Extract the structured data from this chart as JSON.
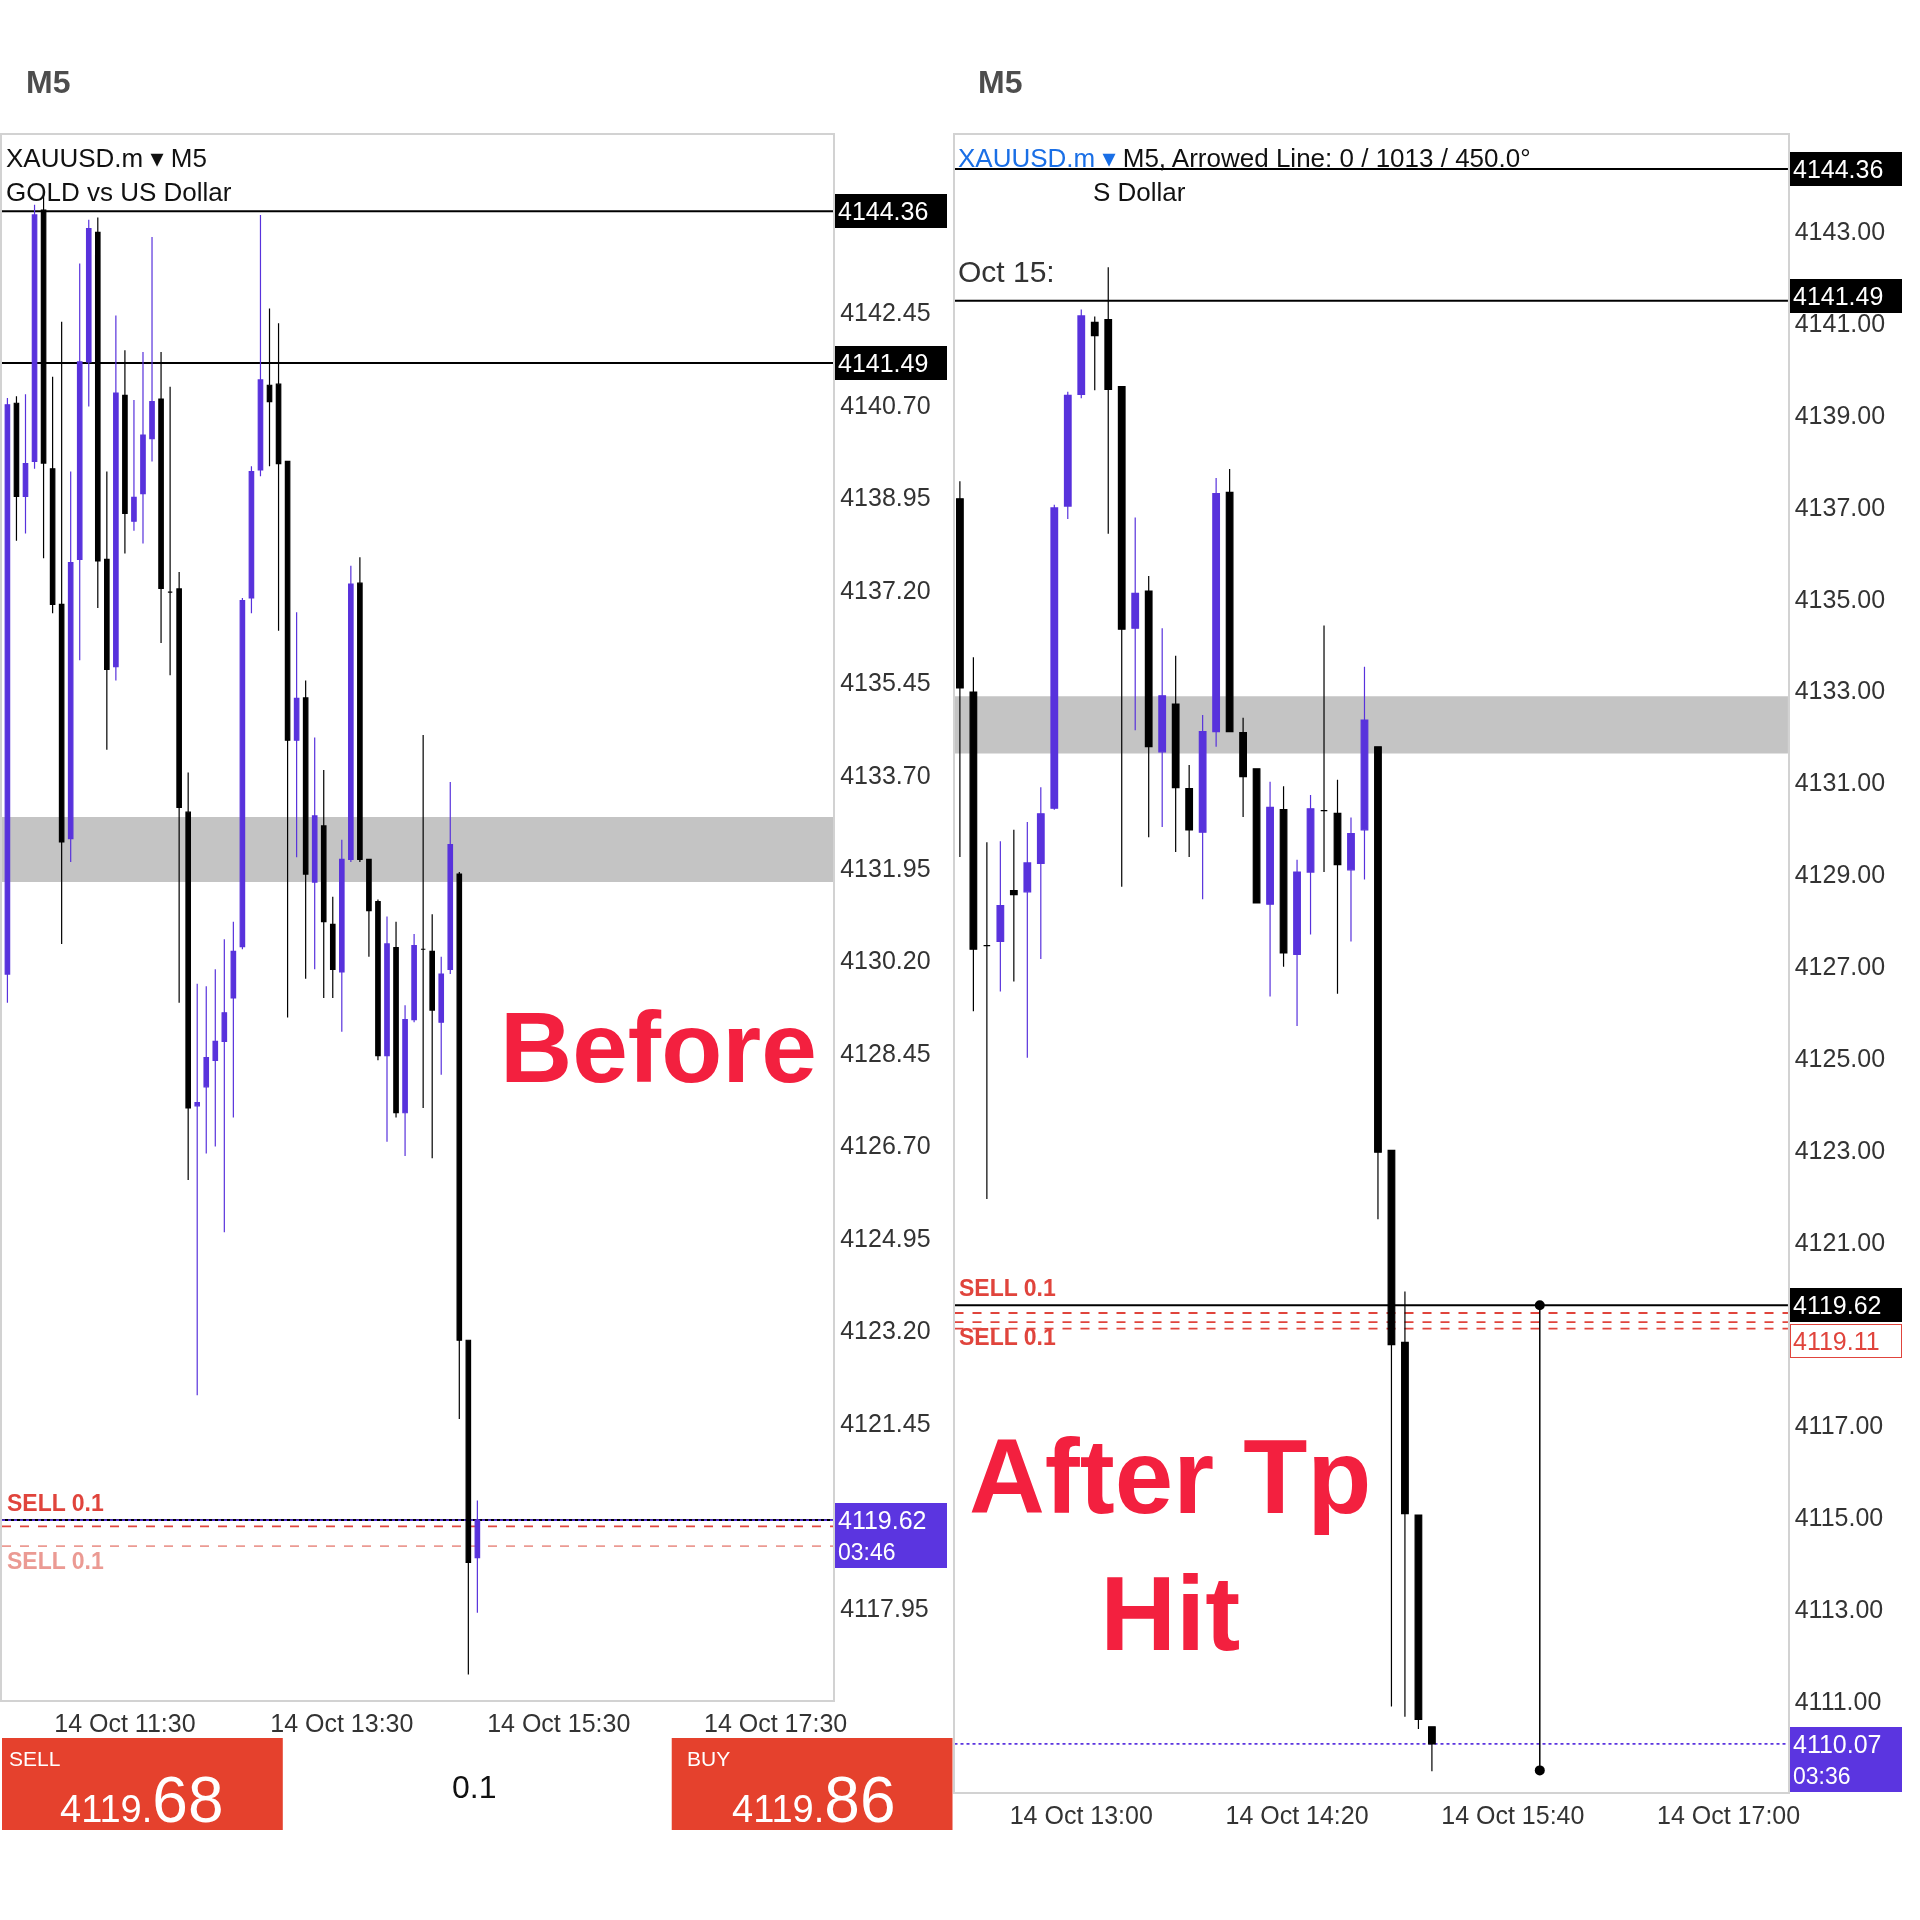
{
  "chart_data": [
    {
      "type": "candlestick",
      "title": "XAUUSD.m ▾ M5",
      "subtitle": "GOLD vs US Dollar",
      "x": [
        "--10-14T10:25",
        "--10-14T10:30",
        "--10-14T10:35",
        "--10-14T10:40",
        "--10-14T10:45",
        "--10-14T10:50",
        "--10-14T10:55",
        "--10-14T11:00",
        "--10-14T11:05",
        "--10-14T11:10",
        "--10-14T11:15",
        "--10-14T11:20",
        "--10-14T11:25",
        "--10-14T11:30",
        "--10-14T11:35",
        "--10-14T11:40",
        "--10-14T11:45",
        "--10-14T11:50",
        "--10-14T11:55",
        "--10-14T12:00",
        "--10-14T12:05",
        "--10-14T12:10",
        "--10-14T12:15",
        "--10-14T12:20",
        "--10-14T12:25",
        "--10-14T12:30",
        "--10-14T12:35",
        "--10-14T12:40",
        "--10-14T12:45",
        "--10-14T12:50",
        "--10-14T12:55",
        "--10-14T13:00",
        "--10-14T13:05",
        "--10-14T13:10",
        "--10-14T13:15",
        "--10-14T13:20",
        "--10-14T13:25",
        "--10-14T13:30",
        "--10-14T13:35",
        "--10-14T13:40",
        "--10-14T13:45",
        "--10-14T13:50",
        "--10-14T13:55",
        "--10-14T14:00",
        "--10-14T14:05",
        "--10-14T14:10",
        "--10-14T14:15",
        "--10-14T14:20",
        "--10-14T14:25",
        "--10-14T14:30",
        "--10-14T14:35",
        "--10-14T14:40",
        "--10-14T14:45"
      ],
      "ohlc": [
        [
          4129.94,
          4140.83,
          4129.4,
          4140.7
        ],
        [
          4140.73,
          4140.86,
          4138.13,
          4138.97
        ],
        [
          4138.97,
          4140.9,
          4138.27,
          4139.59
        ],
        [
          4139.63,
          4144.48,
          4139.49,
          4144.29
        ],
        [
          4144.38,
          4144.67,
          4137.8,
          4139.6
        ],
        [
          4139.49,
          4141.23,
          4136.76,
          4136.93
        ],
        [
          4136.93,
          4142.27,
          4130.51,
          4132.44
        ],
        [
          4132.5,
          4139.44,
          4132.06,
          4137.72
        ],
        [
          4137.78,
          4143.37,
          4135.87,
          4141.51
        ],
        [
          4141.51,
          4144.2,
          4140.67,
          4144.03
        ],
        [
          4143.96,
          4144.24,
          4136.86,
          4137.75
        ],
        [
          4137.78,
          4139.44,
          4134.18,
          4135.7
        ],
        [
          4135.75,
          4142.39,
          4135.49,
          4140.92
        ],
        [
          4140.88,
          4141.73,
          4137.89,
          4138.65
        ],
        [
          4138.5,
          4140.79,
          4138.32,
          4138.95
        ],
        [
          4139.02,
          4141.7,
          4138.08,
          4140.13
        ],
        [
          4140.06,
          4143.87,
          4139.63,
          4140.76
        ],
        [
          4140.81,
          4141.7,
          4136.2,
          4137.23
        ],
        [
          4137.16,
          4141.04,
          4135.59,
          4137.16
        ],
        [
          4137.22,
          4137.54,
          4129.4,
          4133.09
        ],
        [
          4133.0,
          4133.75,
          4126.05,
          4127.41
        ],
        [
          4127.45,
          4129.76,
          4121.98,
          4127.51
        ],
        [
          4127.81,
          4129.71,
          4126.55,
          4128.36
        ],
        [
          4128.31,
          4130.03,
          4126.68,
          4128.67
        ],
        [
          4128.67,
          4130.6,
          4125.06,
          4129.21
        ],
        [
          4129.49,
          4130.93,
          4127.23,
          4130.37
        ],
        [
          4130.46,
          4137.05,
          4130.41,
          4137.0
        ],
        [
          4137.05,
          4139.54,
          4136.76,
          4139.44
        ],
        [
          4139.47,
          4144.29,
          4139.35,
          4141.17
        ],
        [
          4141.07,
          4142.52,
          4139.54,
          4140.76
        ],
        [
          4141.09,
          4142.24,
          4136.43,
          4139.59
        ],
        [
          4139.63,
          4139.63,
          4129.12,
          4134.36
        ],
        [
          4134.36,
          4136.78,
          4132.15,
          4135.15
        ],
        [
          4135.16,
          4135.49,
          4129.85,
          4131.83
        ],
        [
          4131.68,
          4134.41,
          4130.03,
          4132.93
        ],
        [
          4132.74,
          4133.8,
          4129.49,
          4130.93
        ],
        [
          4130.88,
          4131.4,
          4129.49,
          4130.03
        ],
        [
          4129.98,
          4132.48,
          4128.85,
          4132.11
        ],
        [
          4132.11,
          4137.66,
          4132.06,
          4137.31
        ],
        [
          4137.33,
          4137.82,
          4132.06,
          4132.11
        ],
        [
          4132.11,
          4132.11,
          4130.27,
          4131.14
        ],
        [
          4131.31,
          4131.35,
          4128.31,
          4128.4
        ],
        [
          4128.4,
          4131.03,
          4126.77,
          4130.51
        ],
        [
          4130.44,
          4130.93,
          4127.23,
          4127.32
        ],
        [
          4127.32,
          4129.35,
          4126.5,
          4129.08
        ],
        [
          4129.08,
          4130.7,
          4129.03,
          4130.48
        ],
        [
          4130.41,
          4134.46,
          4127.41,
          4130.41
        ],
        [
          4130.37,
          4131.07,
          4126.46,
          4129.26
        ],
        [
          4129.03,
          4130.27,
          4128.04,
          4129.94
        ],
        [
          4130.03,
          4133.57,
          4129.94,
          4132.39
        ],
        [
          4131.83,
          4131.87,
          4121.53,
          4123.02
        ],
        [
          4123.02,
          4123.02,
          4116.7,
          4118.82
        ],
        [
          4118.91,
          4119.99,
          4117.87,
          4119.62
        ]
      ],
      "colors": [
        "#5832dc",
        "#000000",
        "#5832dc",
        "#5832dc",
        "#000000",
        "#000000",
        "#000000",
        "#5832dc",
        "#5832dc",
        "#5832dc",
        "#000000",
        "#000000",
        "#5832dc",
        "#000000",
        "#5832dc",
        "#5832dc",
        "#5832dc",
        "#000000",
        "#000000",
        "#000000",
        "#000000",
        "#5832dc",
        "#5832dc",
        "#5832dc",
        "#5832dc",
        "#5832dc",
        "#5832dc",
        "#5832dc",
        "#5832dc",
        "#000000",
        "#000000",
        "#000000",
        "#5832dc",
        "#000000",
        "#5832dc",
        "#000000",
        "#000000",
        "#5832dc",
        "#5832dc",
        "#000000",
        "#000000",
        "#000000",
        "#5832dc",
        "#000000",
        "#5832dc",
        "#5832dc",
        "#000000",
        "#000000",
        "#5832dc",
        "#5832dc",
        "#000000",
        "#000000",
        "#5832dc"
      ],
      "xlim": [
        "--10-14T10:22",
        "--10-14T18:02"
      ],
      "xticks": [
        {
          "value": "--10-14T11:30",
          "label": "14 Oct 11:30"
        },
        {
          "value": "--10-14T13:30",
          "label": "14 Oct 13:30"
        },
        {
          "value": "--10-14T15:30",
          "label": "14 Oct 15:30"
        },
        {
          "value": "--10-14T17:30",
          "label": "14 Oct 17:30"
        }
      ],
      "ylim": [
        4116.22,
        4145.8
      ],
      "yticks": [
        {
          "value": 4142.45,
          "label": "4142.45"
        },
        {
          "value": 4140.7,
          "label": "4140.70"
        },
        {
          "value": 4138.95,
          "label": "4138.95"
        },
        {
          "value": 4137.2,
          "label": "4137.20"
        },
        {
          "value": 4135.45,
          "label": "4135.45"
        },
        {
          "value": 4133.7,
          "label": "4133.70"
        },
        {
          "value": 4131.95,
          "label": "4131.95"
        },
        {
          "value": 4130.2,
          "label": "4130.20"
        },
        {
          "value": 4128.45,
          "label": "4128.45"
        },
        {
          "value": 4126.7,
          "label": "4126.70"
        },
        {
          "value": 4124.95,
          "label": "4124.95"
        },
        {
          "value": 4123.2,
          "label": "4123.20"
        },
        {
          "value": 4121.45,
          "label": "4121.45"
        },
        {
          "value": 4117.95,
          "label": "4117.95"
        }
      ],
      "ref_lines": [
        {
          "axis": "y",
          "value": 4144.36,
          "label": "4144.36",
          "color": "#000000"
        },
        {
          "axis": "y",
          "value": 4141.49,
          "label": "4141.49",
          "color": "#000000"
        },
        {
          "axis": "y",
          "value": 4119.62,
          "color": "#000000"
        },
        {
          "axis": "y",
          "value": 4119.62,
          "label": "4119.62",
          "color": "#5b35e0",
          "line_style": "dotted"
        },
        {
          "axis": "y",
          "value": 4119.5,
          "label": "SELL 0.1",
          "color": "#e0443c",
          "line_style": "dashed"
        },
        {
          "axis": "y",
          "value": 4119.13,
          "label": "SELL 0.1",
          "color": "#eb9a93",
          "line_style": "dashed"
        }
      ],
      "bands": [
        {
          "axis": "y",
          "from": 4131.68,
          "to": 4132.91,
          "color": "#c4c4c4"
        }
      ],
      "annotations": [
        "M5",
        "Before",
        "03:46",
        "SELL",
        "4119.68",
        "0.1",
        "BUY",
        "4119.86"
      ]
    },
    {
      "type": "candlestick",
      "title": "XAUUSD.m ▾ M5, Arrowed Line: 0 / 1013 / 450.0°",
      "subtitle": "S Dollar",
      "x": [
        "--10-14T12:15",
        "--10-14T12:20",
        "--10-14T12:25",
        "--10-14T12:30",
        "--10-14T12:35",
        "--10-14T12:40",
        "--10-14T12:45",
        "--10-14T12:50",
        "--10-14T12:55",
        "--10-14T13:00",
        "--10-14T13:05",
        "--10-14T13:10",
        "--10-14T13:15",
        "--10-14T13:20",
        "--10-14T13:25",
        "--10-14T13:30",
        "--10-14T13:35",
        "--10-14T13:40",
        "--10-14T13:45",
        "--10-14T13:50",
        "--10-14T13:55",
        "--10-14T14:00",
        "--10-14T14:05",
        "--10-14T14:10",
        "--10-14T14:15",
        "--10-14T14:20",
        "--10-14T14:25",
        "--10-14T14:30",
        "--10-14T14:35",
        "--10-14T14:40",
        "--10-14T14:45",
        "--10-14T14:50",
        "--10-14T14:55",
        "--10-14T15:00",
        "--10-14T15:05",
        "--10-14T15:10"
      ],
      "ohlc": [
        [
          4137.18,
          4137.56,
          4129.38,
          4133.06
        ],
        [
          4132.97,
          4133.73,
          4126.02,
          4127.37
        ],
        [
          4127.45,
          4129.7,
          4121.93,
          4127.45
        ],
        [
          4127.54,
          4129.72,
          4126.45,
          4128.32
        ],
        [
          4128.65,
          4129.97,
          4126.67,
          4128.56
        ],
        [
          4128.62,
          4130.14,
          4125.01,
          4129.25
        ],
        [
          4129.24,
          4130.9,
          4127.16,
          4130.32
        ],
        [
          4130.44,
          4137.05,
          4130.41,
          4136.98
        ],
        [
          4137.02,
          4139.51,
          4136.74,
          4139.43
        ],
        [
          4139.45,
          4141.3,
          4139.37,
          4141.16
        ],
        [
          4141.02,
          4141.15,
          4139.54,
          4140.73
        ],
        [
          4141.08,
          4142.22,
          4136.42,
          4139.56
        ],
        [
          4139.62,
          4139.62,
          4128.73,
          4134.34
        ],
        [
          4134.36,
          4136.77,
          4132.14,
          4135.12
        ],
        [
          4135.17,
          4135.5,
          4129.81,
          4131.78
        ],
        [
          4131.67,
          4134.36,
          4130.03,
          4132.89
        ],
        [
          4132.71,
          4133.76,
          4129.49,
          4130.89
        ],
        [
          4130.87,
          4131.38,
          4129.38,
          4129.97
        ],
        [
          4129.92,
          4132.47,
          4128.46,
          4132.11
        ],
        [
          4132.11,
          4137.63,
          4131.78,
          4137.29
        ],
        [
          4137.32,
          4137.83,
          4132.11,
          4132.11
        ],
        [
          4132.09,
          4132.41,
          4130.25,
          4131.13
        ],
        [
          4131.3,
          4131.3,
          4128.38,
          4128.38
        ],
        [
          4128.35,
          4131.02,
          4126.34,
          4130.46
        ],
        [
          4130.41,
          4130.92,
          4126.99,
          4127.29
        ],
        [
          4127.26,
          4129.32,
          4125.7,
          4129.05
        ],
        [
          4129.05,
          4130.73,
          4127.69,
          4130.43
        ],
        [
          4130.39,
          4134.42,
          4129.05,
          4130.39
        ],
        [
          4130.33,
          4131.06,
          4126.4,
          4129.21
        ],
        [
          4129.1,
          4130.24,
          4127.54,
          4129.89
        ],
        [
          4129.97,
          4133.52,
          4128.89,
          4132.36
        ],
        [
          4131.78,
          4131.78,
          4121.49,
          4122.95
        ],
        [
          4122.99,
          4122.99,
          4110.88,
          4118.76
        ],
        [
          4118.81,
          4119.92,
          4110.66,
          4115.08
        ],
        [
          4115.05,
          4115.05,
          4110.39,
          4110.6
        ],
        [
          4110.44,
          4110.44,
          4109.47,
          4110.07
        ]
      ],
      "colors": [
        "#000000",
        "#000000",
        "#000000",
        "#5832dc",
        "#000000",
        "#5832dc",
        "#5832dc",
        "#5832dc",
        "#5832dc",
        "#5832dc",
        "#000000",
        "#000000",
        "#000000",
        "#5832dc",
        "#000000",
        "#5832dc",
        "#000000",
        "#000000",
        "#5832dc",
        "#5832dc",
        "#000000",
        "#000000",
        "#000000",
        "#5832dc",
        "#000000",
        "#5832dc",
        "#5832dc",
        "#000000",
        "#000000",
        "#5832dc",
        "#5832dc",
        "#000000",
        "#000000",
        "#000000",
        "#000000",
        "#000000"
      ],
      "series": [
        {
          "type": "line",
          "x": [
            "--10-14T15:50",
            "--10-14T15:50"
          ],
          "values": [
            4119.62,
            4109.49
          ],
          "color": "#000000"
        }
      ],
      "marker": "circle",
      "xlim": [
        "--10-14T12:13",
        "--10-14T17:22"
      ],
      "xticks": [
        {
          "value": "--10-14T13:00",
          "label": "14 Oct 13:00"
        },
        {
          "value": "--10-14T14:20",
          "label": "14 Oct 14:20"
        },
        {
          "value": "--10-14T15:40",
          "label": "14 Oct 15:40"
        },
        {
          "value": "--10-14T17:00",
          "label": "14 Oct 17:00"
        }
      ],
      "ylim": [
        4109.02,
        4145.1
      ],
      "yticks": [
        {
          "value": 4143,
          "label": "4143.00"
        },
        {
          "value": 4141,
          "label": "4141.00"
        },
        {
          "value": 4139,
          "label": "4139.00"
        },
        {
          "value": 4137,
          "label": "4137.00"
        },
        {
          "value": 4135,
          "label": "4135.00"
        },
        {
          "value": 4133,
          "label": "4133.00"
        },
        {
          "value": 4131,
          "label": "4131.00"
        },
        {
          "value": 4129,
          "label": "4129.00"
        },
        {
          "value": 4127,
          "label": "4127.00"
        },
        {
          "value": 4125,
          "label": "4125.00"
        },
        {
          "value": 4123,
          "label": "4123.00"
        },
        {
          "value": 4121,
          "label": "4121.00"
        },
        {
          "value": 4117,
          "label": "4117.00"
        },
        {
          "value": 4115,
          "label": "4115.00"
        },
        {
          "value": 4113,
          "label": "4113.00"
        },
        {
          "value": 4111,
          "label": "4111.00"
        }
      ],
      "ref_lines": [
        {
          "axis": "y",
          "value": 4144.36,
          "label": "4144.36",
          "color": "#000000"
        },
        {
          "axis": "y",
          "value": 4141.49,
          "label": "4141.49",
          "color": "#000000"
        },
        {
          "axis": "y",
          "value": 4119.62,
          "label": "4119.62",
          "color": "#000000"
        },
        {
          "axis": "y",
          "value": 4119.45,
          "label": "SELL 0.1",
          "color": "#e0443c",
          "line_style": "dashed"
        },
        {
          "axis": "y",
          "value": 4119.25,
          "label": "SELL 0.1",
          "color": "#e0443c",
          "line_style": "dashed"
        },
        {
          "axis": "y",
          "value": 4119.11,
          "label": "4119.11",
          "color": "#e0443c",
          "line_style": "dashed"
        },
        {
          "axis": "y",
          "value": 4110.07,
          "label": "4110.07",
          "color": "#5b35e0",
          "line_style": "dotted"
        }
      ],
      "bands": [
        {
          "axis": "y",
          "from": 4131.63,
          "to": 4132.88,
          "color": "#c4c4c4"
        }
      ],
      "annotations": [
        "M5",
        "Oct 15:",
        "After Tp Hit",
        "03:36"
      ]
    }
  ]
}
